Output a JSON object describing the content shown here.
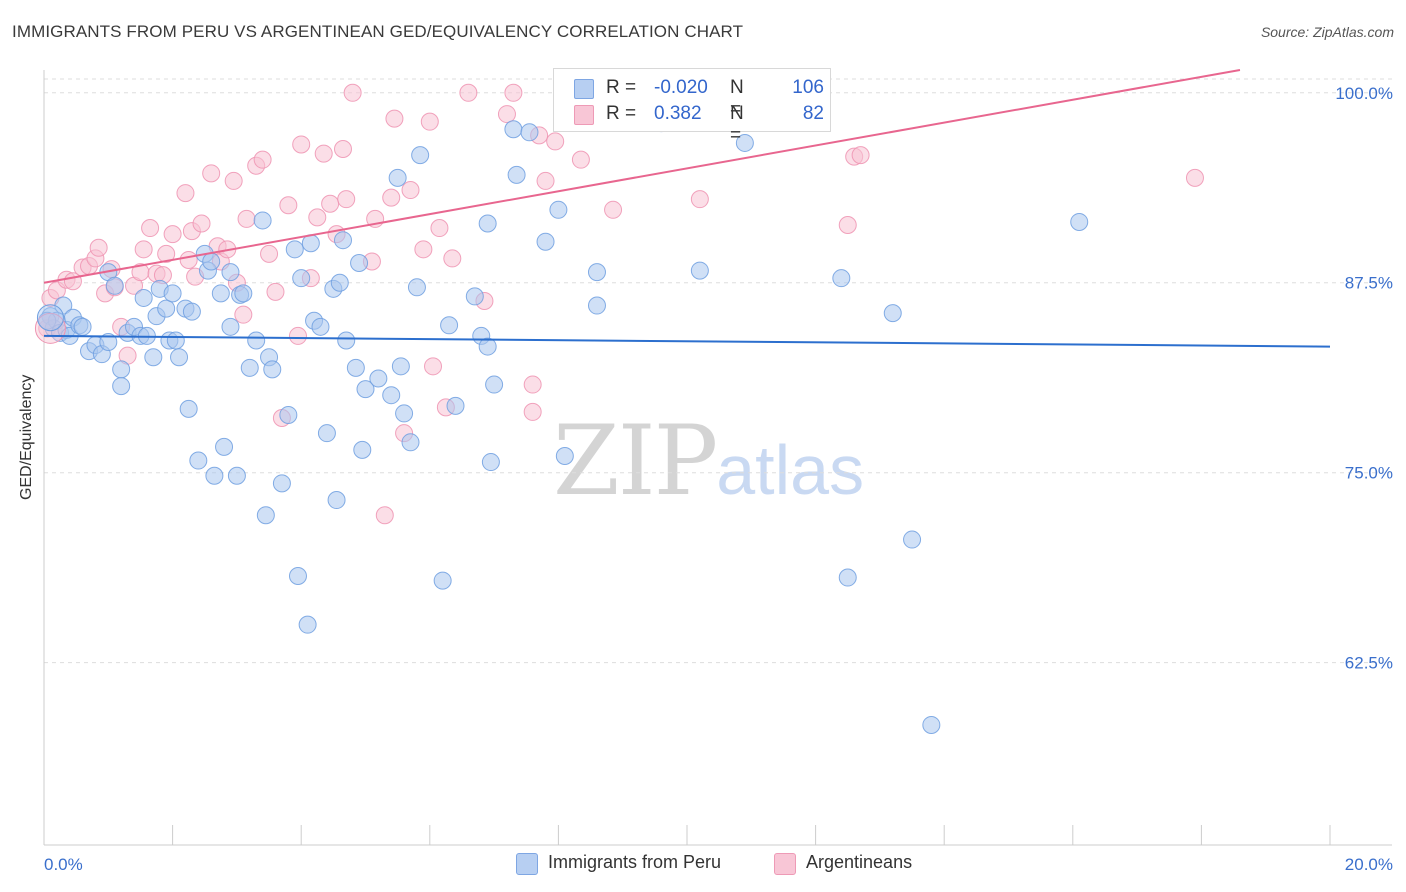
{
  "header": {
    "title": "IMMIGRANTS FROM PERU VS ARGENTINEAN GED/EQUIVALENCY CORRELATION CHART",
    "source": "Source: ZipAtlas.com"
  },
  "watermark": {
    "zip": "ZIP",
    "atlas": "atlas"
  },
  "legend": {
    "series1": {
      "r_label": "R =",
      "r_value": "-0.020",
      "n_label": "N =",
      "n_value": "106",
      "color": "#a9c6ef"
    },
    "series2": {
      "r_label": "R =",
      "r_value": "0.382",
      "n_label": "N =",
      "n_value": "82",
      "color": "#f5b8cc"
    }
  },
  "bottom_legend": {
    "series1": "Immigrants from Peru",
    "series2": "Argentineans"
  },
  "colors": {
    "blue_fill": "#a9c6ef",
    "blue_stroke": "#6f9fe0",
    "blue_line": "#2c6fce",
    "pink_fill": "#f7c3d3",
    "pink_stroke": "#ee93b1",
    "pink_line": "#e8668f",
    "tick_label": "#3a6fcc",
    "grid": "#dddddd"
  },
  "chart_data": {
    "type": "scatter",
    "title": "IMMIGRANTS FROM PERU VS ARGENTINEAN GED/EQUIVALENCY CORRELATION CHART",
    "xlabel": "",
    "ylabel": "GED/Equivalency",
    "xlim": [
      0,
      20
    ],
    "ylim": [
      50.5,
      101.5
    ],
    "x_tick_labels": [
      "0.0%",
      "20.0%"
    ],
    "y_ticks": [
      62.5,
      75.0,
      87.5,
      100.0
    ],
    "y_tick_labels": [
      "62.5%",
      "75.0%",
      "87.5%",
      "100.0%"
    ],
    "grid": true,
    "series": [
      {
        "name": "Immigrants from Peru",
        "R": -0.02,
        "N": 106,
        "trend": {
          "x": [
            0,
            20
          ],
          "y": [
            84.0,
            83.3
          ]
        },
        "points": [
          [
            0.1,
            85.3
          ],
          [
            0.15,
            84.5
          ],
          [
            0.2,
            85.0
          ],
          [
            0.25,
            84.2
          ],
          [
            0.3,
            86.0
          ],
          [
            0.35,
            84.4
          ],
          [
            0.4,
            84.0
          ],
          [
            0.45,
            85.2
          ],
          [
            0.55,
            84.7
          ],
          [
            0.6,
            84.6
          ],
          [
            0.7,
            83.0
          ],
          [
            0.8,
            83.4
          ],
          [
            0.9,
            82.8
          ],
          [
            1.0,
            83.6
          ],
          [
            1.0,
            88.2
          ],
          [
            1.1,
            87.3
          ],
          [
            1.2,
            81.8
          ],
          [
            1.2,
            80.7
          ],
          [
            1.3,
            84.2
          ],
          [
            1.4,
            84.6
          ],
          [
            1.5,
            84.0
          ],
          [
            1.55,
            86.5
          ],
          [
            1.6,
            84.0
          ],
          [
            1.7,
            82.6
          ],
          [
            1.75,
            85.3
          ],
          [
            1.8,
            87.1
          ],
          [
            1.9,
            85.8
          ],
          [
            1.95,
            83.7
          ],
          [
            2.0,
            86.8
          ],
          [
            2.05,
            83.7
          ],
          [
            2.1,
            82.6
          ],
          [
            2.2,
            85.8
          ],
          [
            2.25,
            79.2
          ],
          [
            2.3,
            85.6
          ],
          [
            2.4,
            75.8
          ],
          [
            2.5,
            89.4
          ],
          [
            2.55,
            88.3
          ],
          [
            2.6,
            88.9
          ],
          [
            2.65,
            74.8
          ],
          [
            2.75,
            86.8
          ],
          [
            2.8,
            76.7
          ],
          [
            2.9,
            88.2
          ],
          [
            2.9,
            84.6
          ],
          [
            3.0,
            74.8
          ],
          [
            3.05,
            86.7
          ],
          [
            3.1,
            86.8
          ],
          [
            3.2,
            81.9
          ],
          [
            3.3,
            83.7
          ],
          [
            3.4,
            91.6
          ],
          [
            3.45,
            72.2
          ],
          [
            3.5,
            82.6
          ],
          [
            3.55,
            81.8
          ],
          [
            3.7,
            74.3
          ],
          [
            3.8,
            78.8
          ],
          [
            3.9,
            89.7
          ],
          [
            3.95,
            68.2
          ],
          [
            4.0,
            87.8
          ],
          [
            4.1,
            65.0
          ],
          [
            4.15,
            90.1
          ],
          [
            4.2,
            85.0
          ],
          [
            4.3,
            84.6
          ],
          [
            4.4,
            77.6
          ],
          [
            4.5,
            87.1
          ],
          [
            4.55,
            73.2
          ],
          [
            4.6,
            87.5
          ],
          [
            4.65,
            90.3
          ],
          [
            4.7,
            83.7
          ],
          [
            4.85,
            81.9
          ],
          [
            4.9,
            88.8
          ],
          [
            4.95,
            76.5
          ],
          [
            5.0,
            80.5
          ],
          [
            5.2,
            81.2
          ],
          [
            5.4,
            80.1
          ],
          [
            5.5,
            94.4
          ],
          [
            5.55,
            82.0
          ],
          [
            5.6,
            78.9
          ],
          [
            5.7,
            77.0
          ],
          [
            5.8,
            87.2
          ],
          [
            5.85,
            95.9
          ],
          [
            6.2,
            67.9
          ],
          [
            6.3,
            84.7
          ],
          [
            6.4,
            79.4
          ],
          [
            6.7,
            86.6
          ],
          [
            6.8,
            84.0
          ],
          [
            6.9,
            91.4
          ],
          [
            6.9,
            83.3
          ],
          [
            6.95,
            75.7
          ],
          [
            7.0,
            80.8
          ],
          [
            7.3,
            97.6
          ],
          [
            7.35,
            94.6
          ],
          [
            7.55,
            97.4
          ],
          [
            7.8,
            90.2
          ],
          [
            8.0,
            92.3
          ],
          [
            8.1,
            76.1
          ],
          [
            8.6,
            88.2
          ],
          [
            8.6,
            86.0
          ],
          [
            9.6,
            98.0
          ],
          [
            10.2,
            88.3
          ],
          [
            10.9,
            96.7
          ],
          [
            12.4,
            87.8
          ],
          [
            12.5,
            68.1
          ],
          [
            13.2,
            85.5
          ],
          [
            13.5,
            70.6
          ],
          [
            13.8,
            58.4
          ],
          [
            16.1,
            91.5
          ],
          [
            0.05,
            85.0
          ]
        ]
      },
      {
        "name": "Argentineans",
        "R": 0.382,
        "N": 82,
        "trend": {
          "x": [
            0,
            18.6
          ],
          "y": [
            87.5,
            101.5
          ]
        },
        "points": [
          [
            0.05,
            84.5
          ],
          [
            0.1,
            86.5
          ],
          [
            0.2,
            87.0
          ],
          [
            0.35,
            87.7
          ],
          [
            0.45,
            87.6
          ],
          [
            0.6,
            88.5
          ],
          [
            0.7,
            88.6
          ],
          [
            0.8,
            89.1
          ],
          [
            0.85,
            89.8
          ],
          [
            0.95,
            86.8
          ],
          [
            1.05,
            88.4
          ],
          [
            1.1,
            87.2
          ],
          [
            1.2,
            84.6
          ],
          [
            1.3,
            82.7
          ],
          [
            1.4,
            87.3
          ],
          [
            1.5,
            88.2
          ],
          [
            1.55,
            89.7
          ],
          [
            1.65,
            91.1
          ],
          [
            1.75,
            88.1
          ],
          [
            1.85,
            88.0
          ],
          [
            1.9,
            89.4
          ],
          [
            2.0,
            90.7
          ],
          [
            2.2,
            93.4
          ],
          [
            2.25,
            89.0
          ],
          [
            2.3,
            90.9
          ],
          [
            2.35,
            87.9
          ],
          [
            2.45,
            91.4
          ],
          [
            2.6,
            94.7
          ],
          [
            2.7,
            89.9
          ],
          [
            2.75,
            88.9
          ],
          [
            2.85,
            89.7
          ],
          [
            2.95,
            94.2
          ],
          [
            3.0,
            87.5
          ],
          [
            3.1,
            85.4
          ],
          [
            3.15,
            91.7
          ],
          [
            3.3,
            95.2
          ],
          [
            3.4,
            95.6
          ],
          [
            3.5,
            89.4
          ],
          [
            3.6,
            86.9
          ],
          [
            3.7,
            78.6
          ],
          [
            3.8,
            92.6
          ],
          [
            3.95,
            84.0
          ],
          [
            4.0,
            96.6
          ],
          [
            4.15,
            87.8
          ],
          [
            4.25,
            91.8
          ],
          [
            4.35,
            96.0
          ],
          [
            4.45,
            92.7
          ],
          [
            4.55,
            90.7
          ],
          [
            4.65,
            96.3
          ],
          [
            4.7,
            93.0
          ],
          [
            4.8,
            100.0
          ],
          [
            5.1,
            88.9
          ],
          [
            5.15,
            91.7
          ],
          [
            5.3,
            72.2
          ],
          [
            5.4,
            93.1
          ],
          [
            5.45,
            98.3
          ],
          [
            5.6,
            77.6
          ],
          [
            5.7,
            93.6
          ],
          [
            5.9,
            89.7
          ],
          [
            6.0,
            98.1
          ],
          [
            6.05,
            82.0
          ],
          [
            6.15,
            91.1
          ],
          [
            6.25,
            79.3
          ],
          [
            6.35,
            89.1
          ],
          [
            6.6,
            100.0
          ],
          [
            6.85,
            86.3
          ],
          [
            7.2,
            98.6
          ],
          [
            7.3,
            100.0
          ],
          [
            7.6,
            80.8
          ],
          [
            7.6,
            79.0
          ],
          [
            7.7,
            97.2
          ],
          [
            7.8,
            94.2
          ],
          [
            7.95,
            96.8
          ],
          [
            8.3,
            100.0
          ],
          [
            8.35,
            95.6
          ],
          [
            8.85,
            92.3
          ],
          [
            9.2,
            100.0
          ],
          [
            10.2,
            93.0
          ],
          [
            12.5,
            91.3
          ],
          [
            12.6,
            95.8
          ],
          [
            12.7,
            95.9
          ],
          [
            17.9,
            94.4
          ]
        ]
      }
    ]
  }
}
